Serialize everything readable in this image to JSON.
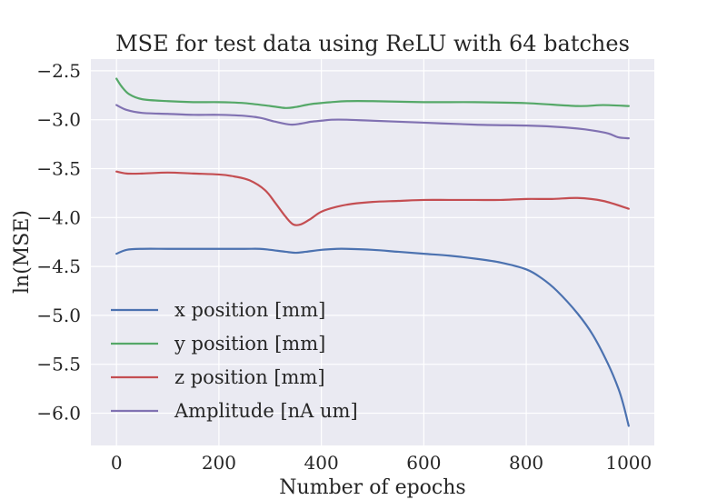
{
  "chart_data": {
    "type": "line",
    "title": "MSE for test data using ReLU with 64 batches",
    "xlabel": "Number of epochs",
    "ylabel": "ln(MSE)",
    "xlim": [
      -50,
      1050
    ],
    "ylim": [
      -6.33,
      -2.38
    ],
    "xticks": [
      0,
      200,
      400,
      600,
      800,
      1000
    ],
    "xtick_labels": [
      "0",
      "200",
      "400",
      "600",
      "800",
      "1000"
    ],
    "yticks": [
      -2.5,
      -3.0,
      -3.5,
      -4.0,
      -4.5,
      -5.0,
      -5.5,
      -6.0
    ],
    "ytick_labels": [
      "−2.5",
      "−3.0",
      "−3.5",
      "−4.0",
      "−4.5",
      "−5.0",
      "−5.5",
      "−6.0"
    ],
    "grid": true,
    "legend_position": "lower-left",
    "series": [
      {
        "name": "x position [mm]",
        "color": "#4C72B0",
        "x": [
          0,
          20,
          50,
          100,
          150,
          200,
          250,
          280,
          300,
          330,
          350,
          370,
          400,
          430,
          450,
          500,
          550,
          600,
          650,
          700,
          750,
          800,
          830,
          860,
          900,
          930,
          960,
          980,
          990,
          1000
        ],
        "y": [
          -4.37,
          -4.33,
          -4.32,
          -4.32,
          -4.32,
          -4.32,
          -4.32,
          -4.32,
          -4.33,
          -4.35,
          -4.36,
          -4.35,
          -4.33,
          -4.32,
          -4.32,
          -4.33,
          -4.35,
          -4.37,
          -4.39,
          -4.42,
          -4.46,
          -4.53,
          -4.62,
          -4.75,
          -4.98,
          -5.2,
          -5.5,
          -5.75,
          -5.92,
          -6.13
        ]
      },
      {
        "name": "y position [mm]",
        "color": "#55A868",
        "x": [
          0,
          10,
          25,
          50,
          100,
          150,
          200,
          250,
          300,
          330,
          350,
          380,
          420,
          450,
          500,
          600,
          700,
          800,
          900,
          950,
          1000
        ],
        "y": [
          -2.58,
          -2.66,
          -2.74,
          -2.79,
          -2.81,
          -2.82,
          -2.82,
          -2.83,
          -2.86,
          -2.88,
          -2.87,
          -2.84,
          -2.82,
          -2.81,
          -2.81,
          -2.82,
          -2.82,
          -2.83,
          -2.86,
          -2.85,
          -2.86
        ]
      },
      {
        "name": "z position [mm]",
        "color": "#C44E52",
        "x": [
          0,
          20,
          50,
          100,
          150,
          200,
          230,
          260,
          290,
          310,
          330,
          345,
          360,
          380,
          400,
          430,
          460,
          500,
          550,
          600,
          650,
          700,
          750,
          800,
          850,
          900,
          950,
          1000
        ],
        "y": [
          -3.53,
          -3.55,
          -3.55,
          -3.54,
          -3.55,
          -3.56,
          -3.58,
          -3.62,
          -3.72,
          -3.85,
          -3.99,
          -4.07,
          -4.07,
          -4.01,
          -3.94,
          -3.89,
          -3.86,
          -3.84,
          -3.83,
          -3.82,
          -3.82,
          -3.82,
          -3.82,
          -3.81,
          -3.81,
          -3.8,
          -3.83,
          -3.91
        ]
      },
      {
        "name": "Amplitude [nA um]",
        "color": "#8172B2",
        "x": [
          0,
          20,
          50,
          100,
          150,
          200,
          250,
          280,
          310,
          340,
          360,
          380,
          400,
          420,
          450,
          500,
          600,
          700,
          800,
          850,
          900,
          930,
          960,
          980,
          1000
        ],
        "y": [
          -2.85,
          -2.9,
          -2.93,
          -2.94,
          -2.95,
          -2.95,
          -2.96,
          -2.98,
          -3.02,
          -3.05,
          -3.04,
          -3.02,
          -3.01,
          -3.0,
          -3.0,
          -3.01,
          -3.03,
          -3.05,
          -3.06,
          -3.07,
          -3.09,
          -3.11,
          -3.14,
          -3.18,
          -3.19
        ]
      }
    ]
  }
}
